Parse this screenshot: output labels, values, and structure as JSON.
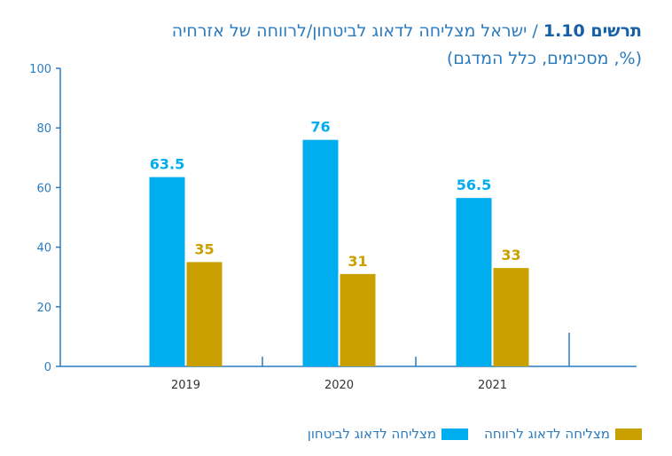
{
  "chart_data": {
    "type": "bar",
    "title_number": "תרשים 1.10",
    "title_sep": " / ",
    "title": "ישראל מצליחה לדאוג לביטחון/לרווחה של אזרחיה",
    "subtitle": "(%, מסכימים, כלל המדגם)",
    "categories": [
      "2019",
      "2020",
      "2021"
    ],
    "series": [
      {
        "name": "מצליחה לדאוג לביטחון",
        "color": "#00aeef",
        "values": [
          63.5,
          76,
          56.5
        ]
      },
      {
        "name": "מצליחה לדאוג לרווחה",
        "color": "#c9a000",
        "values": [
          35,
          31,
          33
        ]
      }
    ],
    "ylim": [
      0,
      100
    ],
    "yticks": [
      0,
      20,
      40,
      60,
      80,
      100
    ],
    "grid": false,
    "legend_position": "bottom",
    "axis_color": "#2b7bbf"
  }
}
